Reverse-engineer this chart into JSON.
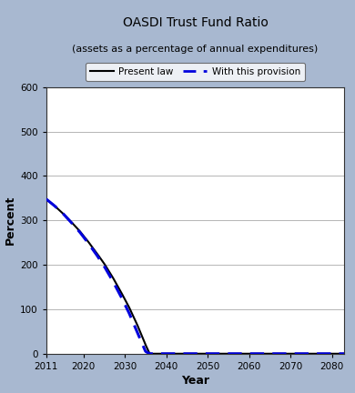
{
  "title": "OASDI Trust Fund Ratio",
  "subtitle": "(assets as a percentage of annual expenditures)",
  "xlabel": "Year",
  "ylabel": "Percent",
  "xlim": [
    2011,
    2083
  ],
  "ylim": [
    0,
    600
  ],
  "xticks": [
    2011,
    2020,
    2030,
    2040,
    2050,
    2060,
    2070,
    2080
  ],
  "yticks": [
    0,
    100,
    200,
    300,
    400,
    500,
    600
  ],
  "bg_color": "#a8b8d0",
  "plot_bg_color": "#ffffff",
  "present_law_color": "#000000",
  "provision_color": "#0000dd",
  "present_law_years": [
    2011,
    2013,
    2015,
    2017,
    2019,
    2021,
    2023,
    2025,
    2027,
    2029,
    2031,
    2033,
    2035,
    2036,
    2040,
    2050,
    2060,
    2070,
    2080
  ],
  "present_law_values": [
    348,
    333,
    316,
    297,
    277,
    254,
    229,
    203,
    173,
    140,
    105,
    65,
    20,
    0,
    0,
    0,
    0,
    0,
    0
  ],
  "provision_years": [
    2011,
    2013,
    2015,
    2017,
    2019,
    2021,
    2023,
    2025,
    2027,
    2029,
    2031,
    2033,
    2035,
    2036,
    2040,
    2050,
    2060,
    2070,
    2080
  ],
  "provision_values": [
    348,
    333,
    316,
    296,
    275,
    251,
    225,
    197,
    165,
    130,
    92,
    48,
    5,
    0,
    0,
    0,
    0,
    0,
    0
  ],
  "legend_labels": [
    "Present law",
    "With this provision"
  ]
}
